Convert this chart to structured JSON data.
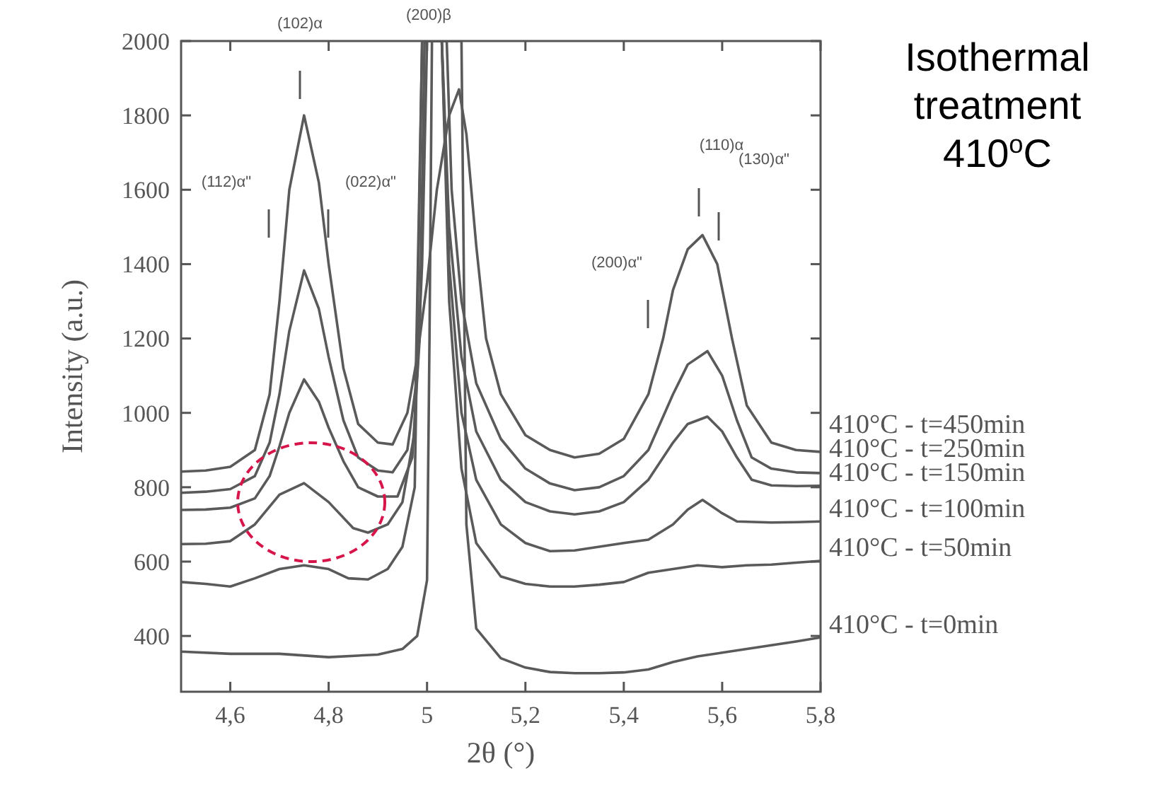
{
  "chart_data": {
    "type": "line",
    "title": "Isothermal treatment 410$^{o}$C",
    "xlabel": "2θ (°)",
    "ylabel": "Intensity (a.u.)",
    "xlim": [
      4.5,
      5.8
    ],
    "xticks": [
      {
        "value": 4.6,
        "label": "4,6"
      },
      {
        "value": 4.8,
        "label": "4,8"
      },
      5,
      {
        "value": 5.2,
        "label": "5,2"
      },
      {
        "value": 5.4,
        "label": "5,4"
      },
      {
        "value": 5.6,
        "label": "5,6"
      },
      {
        "value": 5.8,
        "label": "5,8"
      }
    ],
    "ylim": [
      250,
      2000
    ],
    "yticks": [
      400,
      600,
      800,
      1000,
      1200,
      1400,
      1600,
      1800,
      2000
    ],
    "marker": "none",
    "line_style": "solid",
    "grid": false,
    "annotations": [
      "(200)β",
      "(102)α",
      "(112)α\"",
      "(022)α\"",
      "(110)α",
      "(130)α\"",
      "(200)α\""
    ],
    "legend": "right",
    "series": [
      {
        "name": "410°C - t=450min",
        "color": "#5a5a5a",
        "x": [
          4.5,
          4.55,
          4.6,
          4.65,
          4.68,
          4.7,
          4.72,
          4.75,
          4.78,
          4.8,
          4.83,
          4.86,
          4.9,
          4.93,
          4.96,
          4.98,
          5.0,
          5.02,
          5.045,
          5.065,
          5.08,
          5.1,
          5.12,
          5.15,
          5.2,
          5.25,
          5.3,
          5.35,
          5.4,
          5.45,
          5.48,
          5.5,
          5.53,
          5.56,
          5.59,
          5.62,
          5.65,
          5.7,
          5.75,
          5.8
        ],
        "values": [
          842,
          845,
          855,
          900,
          1050,
          1300,
          1600,
          1800,
          1620,
          1400,
          1120,
          970,
          920,
          915,
          1000,
          1150,
          1350,
          1600,
          1800,
          1870,
          1750,
          1450,
          1200,
          1050,
          940,
          900,
          880,
          890,
          930,
          1050,
          1200,
          1330,
          1440,
          1478,
          1400,
          1200,
          1020,
          920,
          900,
          895
        ]
      },
      {
        "name": "410°C - t=250min",
        "color": "#5a5a5a",
        "x": [
          4.5,
          4.55,
          4.6,
          4.65,
          4.68,
          4.7,
          4.72,
          4.75,
          4.78,
          4.8,
          4.83,
          4.86,
          4.9,
          4.93,
          4.96,
          4.98,
          4.99,
          5.0,
          5.04,
          5.05,
          5.07,
          5.1,
          5.15,
          5.2,
          5.25,
          5.3,
          5.35,
          5.4,
          5.45,
          5.5,
          5.53,
          5.57,
          5.6,
          5.63,
          5.66,
          5.7,
          5.75,
          5.8
        ],
        "values": [
          785,
          788,
          795,
          830,
          920,
          1050,
          1220,
          1383,
          1280,
          1150,
          980,
          880,
          845,
          840,
          900,
          1100,
          1400,
          2000,
          2000,
          1600,
          1300,
          1080,
          930,
          850,
          810,
          792,
          800,
          830,
          900,
          1050,
          1130,
          1166,
          1100,
          980,
          880,
          850,
          840,
          838
        ]
      },
      {
        "name": "410°C - t=150min",
        "color": "#5a5a5a",
        "x": [
          4.5,
          4.55,
          4.6,
          4.65,
          4.68,
          4.7,
          4.72,
          4.75,
          4.78,
          4.8,
          4.83,
          4.86,
          4.9,
          4.94,
          4.97,
          4.985,
          4.995,
          5.03,
          5.045,
          5.07,
          5.1,
          5.15,
          5.2,
          5.25,
          5.3,
          5.35,
          5.4,
          5.45,
          5.5,
          5.53,
          5.57,
          5.6,
          5.63,
          5.66,
          5.7,
          5.75,
          5.8
        ],
        "values": [
          739,
          740,
          745,
          770,
          830,
          910,
          1000,
          1090,
          1030,
          960,
          870,
          800,
          775,
          775,
          880,
          1200,
          2000,
          2000,
          1500,
          1150,
          950,
          820,
          760,
          735,
          727,
          735,
          760,
          820,
          920,
          970,
          990,
          950,
          880,
          820,
          805,
          803,
          804
        ]
      },
      {
        "name": "410°C - t=100min",
        "color": "#5a5a5a",
        "x": [
          4.5,
          4.55,
          4.6,
          4.65,
          4.7,
          4.75,
          4.8,
          4.85,
          4.88,
          4.92,
          4.95,
          4.975,
          4.99,
          5.03,
          5.045,
          5.07,
          5.1,
          5.15,
          5.2,
          5.25,
          5.3,
          5.35,
          5.4,
          5.45,
          5.5,
          5.53,
          5.56,
          5.6,
          5.63,
          5.7,
          5.75,
          5.8
        ],
        "values": [
          647,
          648,
          655,
          700,
          780,
          811,
          760,
          690,
          678,
          700,
          760,
          950,
          2000,
          2000,
          1400,
          1000,
          820,
          700,
          650,
          628,
          630,
          640,
          650,
          659,
          700,
          740,
          766,
          730,
          708,
          705,
          706,
          708
        ]
      },
      {
        "name": "410°C - t=50min",
        "color": "#5a5a5a",
        "x": [
          4.5,
          4.55,
          4.6,
          4.65,
          4.7,
          4.75,
          4.8,
          4.84,
          4.88,
          4.92,
          4.95,
          4.975,
          4.99,
          5.03,
          5.045,
          5.07,
          5.1,
          5.15,
          5.2,
          5.25,
          5.3,
          5.35,
          5.4,
          5.45,
          5.5,
          5.55,
          5.6,
          5.65,
          5.7,
          5.75,
          5.8
        ],
        "values": [
          545,
          540,
          533,
          555,
          580,
          590,
          580,
          555,
          552,
          580,
          640,
          800,
          2000,
          2000,
          1300,
          850,
          650,
          560,
          540,
          533,
          533,
          538,
          545,
          570,
          580,
          590,
          585,
          590,
          592,
          597,
          602
        ]
      },
      {
        "name": "410°C - t=0min",
        "color": "#5a5a5a",
        "x": [
          4.5,
          4.6,
          4.7,
          4.8,
          4.9,
          4.95,
          4.98,
          5.0,
          5.005,
          5.01,
          5.07,
          5.08,
          5.1,
          5.15,
          5.2,
          5.25,
          5.3,
          5.35,
          5.4,
          5.45,
          5.5,
          5.55,
          5.6,
          5.65,
          5.7,
          5.75,
          5.8
        ],
        "values": [
          358,
          352,
          352,
          343,
          350,
          365,
          400,
          550,
          1200,
          2000,
          2000,
          700,
          420,
          340,
          315,
          303,
          300,
          300,
          302,
          310,
          330,
          345,
          355,
          365,
          375,
          385,
          396
        ]
      }
    ]
  }
}
